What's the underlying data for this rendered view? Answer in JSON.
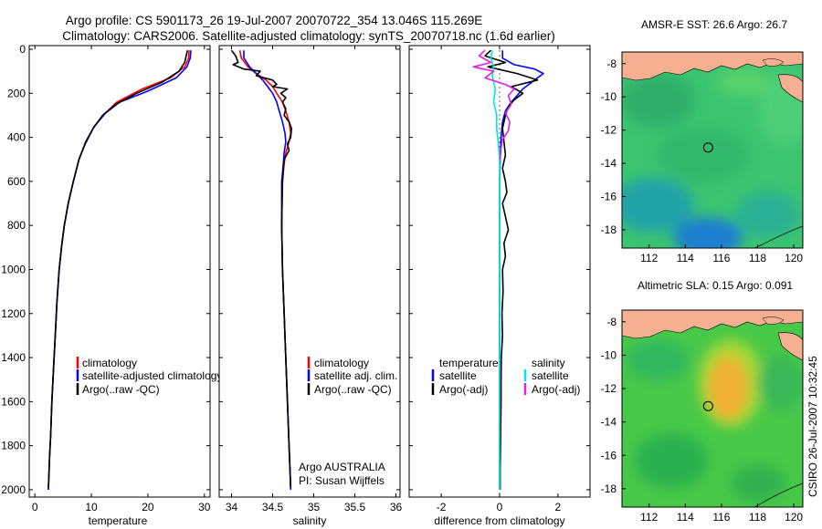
{
  "header": {
    "title_line1": "Argo profile: CS 5901173_26 19-Jul-2007 20070722_354 13.046S 115.269E",
    "title_line2": "Climatology: CARS2006. Satellite-adjusted climatology: synTS_20070718.nc (1.6d earlier)"
  },
  "colors": {
    "climatology": "#ff0000",
    "satellite": "#0000ff",
    "argo": "#000000",
    "sal_satellite": "#00e5e5",
    "sal_argo": "#e020e0",
    "land": "#f4b090",
    "sst_field": "#3cc470",
    "sla_field": "#48c848"
  },
  "chart_data": [
    {
      "type": "line",
      "name": "temperature-panel",
      "xlabel": "temperature",
      "xlim": [
        -1,
        31
      ],
      "ylim": [
        2050,
        0
      ],
      "xticks": [
        "0",
        "10",
        "20",
        "30"
      ],
      "xtick_values": [
        0,
        10,
        20,
        30
      ],
      "yticks": [
        "0",
        "200",
        "400",
        "600",
        "800",
        "1000",
        "1200",
        "1400",
        "1600",
        "1800",
        "2000"
      ],
      "ytick_values": [
        0,
        200,
        400,
        600,
        800,
        1000,
        1200,
        1400,
        1600,
        1800,
        2000
      ],
      "legend": [
        "climatology",
        "satellite-adjusted climatology",
        "Argo(..raw -QC)"
      ],
      "series": [
        {
          "name": "climatology",
          "color": "#ff0000",
          "points": [
            [
              27.3,
              5
            ],
            [
              27.2,
              40
            ],
            [
              26.5,
              80
            ],
            [
              24,
              130
            ],
            [
              19,
              180
            ],
            [
              14.5,
              240
            ],
            [
              12.5,
              290
            ],
            [
              10.5,
              350
            ],
            [
              9,
              420
            ],
            [
              7.8,
              500
            ],
            [
              6.8,
              600
            ],
            [
              5.9,
              700
            ],
            [
              5.2,
              800
            ],
            [
              4.7,
              900
            ],
            [
              4.3,
              1000
            ],
            [
              3.9,
              1150
            ],
            [
              3.6,
              1300
            ],
            [
              3.3,
              1450
            ],
            [
              3.0,
              1600
            ],
            [
              2.8,
              1750
            ],
            [
              2.6,
              1850
            ],
            [
              2.4,
              2000
            ]
          ]
        },
        {
          "name": "satellite",
          "color": "#0000ff",
          "points": [
            [
              27.6,
              5
            ],
            [
              27.5,
              40
            ],
            [
              26.9,
              80
            ],
            [
              25,
              130
            ],
            [
              20,
              190
            ],
            [
              15,
              240
            ],
            [
              12.5,
              290
            ],
            [
              10.5,
              350
            ],
            [
              9,
              420
            ],
            [
              7.8,
              500
            ],
            [
              6.8,
              600
            ],
            [
              5.9,
              700
            ],
            [
              5.2,
              800
            ],
            [
              4.7,
              900
            ],
            [
              4.3,
              1000
            ],
            [
              3.9,
              1150
            ],
            [
              3.6,
              1300
            ],
            [
              3.3,
              1450
            ],
            [
              3.0,
              1600
            ],
            [
              2.8,
              1750
            ],
            [
              2.6,
              1850
            ],
            [
              2.4,
              2000
            ]
          ]
        },
        {
          "name": "Argo",
          "color": "#000000",
          "points": [
            [
              27.0,
              5
            ],
            [
              26.5,
              60
            ],
            [
              25.5,
              100
            ],
            [
              22.5,
              150
            ],
            [
              18,
              200
            ],
            [
              14.3,
              250
            ],
            [
              12,
              300
            ],
            [
              10.3,
              360
            ],
            [
              8.9,
              430
            ],
            [
              7.8,
              500
            ],
            [
              6.8,
              600
            ],
            [
              5.9,
              700
            ],
            [
              5.2,
              800
            ],
            [
              4.7,
              900
            ],
            [
              4.3,
              1000
            ],
            [
              3.9,
              1150
            ],
            [
              3.6,
              1300
            ],
            [
              3.3,
              1450
            ],
            [
              3.0,
              1600
            ],
            [
              2.8,
              1750
            ],
            [
              2.6,
              1850
            ],
            [
              2.4,
              1990
            ]
          ]
        }
      ]
    },
    {
      "type": "line",
      "name": "salinity-panel",
      "xlabel": "salinity",
      "xlim": [
        33.85,
        36.05
      ],
      "ylim": [
        2050,
        0
      ],
      "xticks": [
        "34",
        "34.5",
        "35",
        "35.5",
        "36"
      ],
      "xtick_values": [
        34,
        34.5,
        35,
        35.5,
        36
      ],
      "legend": [
        "climatology",
        "satellite adj. clim.",
        "Argo(..raw -QC)"
      ],
      "annotation": [
        "Argo AUSTRALIA",
        "PI: Susan Wijffels"
      ],
      "series": [
        {
          "name": "climatology",
          "color": "#ff0000",
          "points": [
            [
              34.1,
              5
            ],
            [
              34.12,
              40
            ],
            [
              34.2,
              80
            ],
            [
              34.3,
              110
            ],
            [
              34.42,
              140
            ],
            [
              34.5,
              170
            ],
            [
              34.55,
              200
            ],
            [
              34.62,
              240
            ],
            [
              34.66,
              280
            ],
            [
              34.7,
              330
            ],
            [
              34.72,
              380
            ],
            [
              34.7,
              420
            ],
            [
              34.66,
              470
            ],
            [
              34.64,
              520
            ],
            [
              34.62,
              600
            ],
            [
              34.61,
              800
            ],
            [
              34.62,
              1000
            ],
            [
              34.64,
              1200
            ],
            [
              34.66,
              1400
            ],
            [
              34.68,
              1600
            ],
            [
              34.7,
              1800
            ],
            [
              34.72,
              2000
            ]
          ]
        },
        {
          "name": "satellite",
          "color": "#0000ff",
          "points": [
            [
              34.15,
              5
            ],
            [
              34.15,
              40
            ],
            [
              34.22,
              80
            ],
            [
              34.3,
              110
            ],
            [
              34.38,
              140
            ],
            [
              34.44,
              170
            ],
            [
              34.5,
              200
            ],
            [
              34.55,
              240
            ],
            [
              34.58,
              280
            ],
            [
              34.62,
              330
            ],
            [
              34.65,
              380
            ],
            [
              34.66,
              420
            ],
            [
              34.64,
              470
            ],
            [
              34.63,
              520
            ],
            [
              34.61,
              600
            ],
            [
              34.61,
              800
            ],
            [
              34.62,
              1000
            ],
            [
              34.64,
              1200
            ],
            [
              34.66,
              1400
            ],
            [
              34.68,
              1600
            ],
            [
              34.7,
              1800
            ],
            [
              34.72,
              2000
            ]
          ]
        },
        {
          "name": "Argo",
          "color": "#000000",
          "points": [
            [
              34.0,
              5
            ],
            [
              34.05,
              30
            ],
            [
              34.08,
              60
            ],
            [
              34.02,
              70
            ],
            [
              34.15,
              90
            ],
            [
              34.35,
              100
            ],
            [
              34.3,
              120
            ],
            [
              34.5,
              140
            ],
            [
              34.55,
              160
            ],
            [
              34.5,
              170
            ],
            [
              34.68,
              180
            ],
            [
              34.6,
              200
            ],
            [
              34.66,
              220
            ],
            [
              34.62,
              240
            ],
            [
              34.66,
              270
            ],
            [
              34.64,
              300
            ],
            [
              34.7,
              330
            ],
            [
              34.73,
              360
            ],
            [
              34.72,
              400
            ],
            [
              34.68,
              430
            ],
            [
              34.7,
              460
            ],
            [
              34.64,
              500
            ],
            [
              34.62,
              600
            ],
            [
              34.61,
              800
            ],
            [
              34.62,
              1000
            ],
            [
              34.64,
              1200
            ],
            [
              34.66,
              1400
            ],
            [
              34.68,
              1600
            ],
            [
              34.7,
              1800
            ],
            [
              34.72,
              1990
            ]
          ]
        }
      ]
    },
    {
      "type": "line",
      "name": "difference-panel",
      "xlabel": "difference from climatology",
      "xlim": [
        -3.1,
        3.1
      ],
      "ylim": [
        2050,
        0
      ],
      "xticks": [
        "-2",
        "0",
        "2"
      ],
      "xtick_values": [
        -2,
        0,
        2
      ],
      "legend_temperature": [
        "temperature",
        "satellite",
        "Argo(-adj)"
      ],
      "legend_salinity": [
        "salinity",
        "satellite",
        "Argo(-adj)"
      ],
      "series": [
        {
          "name": "temperature satellite",
          "color": "#0000ff",
          "points": [
            [
              0.1,
              5
            ],
            [
              0.1,
              40
            ],
            [
              0.5,
              70
            ],
            [
              1.2,
              90
            ],
            [
              1.5,
              110
            ],
            [
              1.1,
              150
            ],
            [
              0.8,
              180
            ],
            [
              0.6,
              210
            ],
            [
              0.4,
              240
            ],
            [
              0.2,
              280
            ],
            [
              0.1,
              330
            ],
            [
              0.05,
              400
            ],
            [
              0.02,
              500
            ],
            [
              0,
              600
            ],
            [
              0,
              800
            ],
            [
              0,
              1000
            ],
            [
              0,
              1200
            ],
            [
              0,
              1400
            ],
            [
              0,
              1600
            ],
            [
              0,
              1800
            ],
            [
              0,
              2000
            ]
          ]
        },
        {
          "name": "temperature Argo",
          "color": "#000000",
          "points": [
            [
              -0.3,
              5
            ],
            [
              -0.5,
              30
            ],
            [
              0.2,
              60
            ],
            [
              -0.4,
              80
            ],
            [
              0.6,
              110
            ],
            [
              1.3,
              140
            ],
            [
              0.4,
              170
            ],
            [
              0.8,
              200
            ],
            [
              0.5,
              230
            ],
            [
              0.3,
              260
            ],
            [
              0.2,
              300
            ],
            [
              0.1,
              360
            ],
            [
              0.15,
              420
            ],
            [
              0.2,
              480
            ],
            [
              0.1,
              540
            ],
            [
              0.2,
              600
            ],
            [
              0.25,
              650
            ],
            [
              0.1,
              700
            ],
            [
              0.2,
              760
            ],
            [
              0.3,
              820
            ],
            [
              0.15,
              880
            ],
            [
              0.2,
              940
            ],
            [
              0.1,
              1000
            ],
            [
              0.12,
              1100
            ],
            [
              0.08,
              1200
            ],
            [
              0.1,
              1300
            ],
            [
              0.06,
              1400
            ],
            [
              0.05,
              1500
            ],
            [
              0.05,
              1600
            ],
            [
              0.04,
              1700
            ],
            [
              0.03,
              1800
            ],
            [
              0.02,
              1900
            ],
            [
              0.02,
              2000
            ]
          ]
        },
        {
          "name": "salinity satellite",
          "color": "#00e5e5",
          "points": [
            [
              -0.25,
              5
            ],
            [
              -0.3,
              40
            ],
            [
              -0.2,
              80
            ],
            [
              -0.25,
              120
            ],
            [
              -0.15,
              180
            ],
            [
              -0.2,
              240
            ],
            [
              -0.1,
              300
            ],
            [
              -0.1,
              360
            ],
            [
              -0.05,
              420
            ],
            [
              0,
              500
            ],
            [
              0,
              600
            ],
            [
              0,
              800
            ],
            [
              0,
              1000
            ],
            [
              0,
              1200
            ],
            [
              0,
              1400
            ],
            [
              0,
              1600
            ],
            [
              0,
              1800
            ],
            [
              0,
              2000
            ]
          ]
        },
        {
          "name": "salinity Argo",
          "color": "#e020e0",
          "points": [
            [
              -0.5,
              5
            ],
            [
              -0.7,
              30
            ],
            [
              -0.3,
              60
            ],
            [
              -0.9,
              80
            ],
            [
              -0.2,
              100
            ],
            [
              -0.5,
              130
            ],
            [
              0.2,
              160
            ],
            [
              0.5,
              180
            ],
            [
              0.3,
              210
            ],
            [
              0.4,
              250
            ],
            [
              0.2,
              290
            ],
            [
              0.35,
              330
            ],
            [
              0.3,
              370
            ],
            [
              0.1,
              410
            ],
            [
              0.05,
              450
            ],
            [
              0.02,
              500
            ]
          ]
        }
      ]
    }
  ],
  "maps": [
    {
      "name": "sst-map",
      "title": "AMSR-E SST: 26.6 Argo: 26.7",
      "xticks": [
        "112",
        "114",
        "116",
        "118",
        "120"
      ],
      "yticks": [
        "-8",
        "-10",
        "-12",
        "-14",
        "-16",
        "-18"
      ],
      "lon_range": [
        110.5,
        120.5
      ],
      "lat_range": [
        -7.3,
        -19.1
      ],
      "argo_position": [
        115.269,
        -13.046
      ]
    },
    {
      "name": "sla-map",
      "title": "Altimetric SLA: 0.15 Argo: 0.091",
      "xticks": [
        "112",
        "114",
        "116",
        "118",
        "120"
      ],
      "yticks": [
        "-8",
        "-10",
        "-12",
        "-14",
        "-16",
        "-18"
      ],
      "lon_range": [
        110.5,
        120.5
      ],
      "lat_range": [
        -7.3,
        -19.1
      ],
      "argo_position": [
        115.269,
        -13.046
      ]
    }
  ],
  "footer": {
    "credit": "CSIRO 26-Jul-2007 10:32:45"
  }
}
